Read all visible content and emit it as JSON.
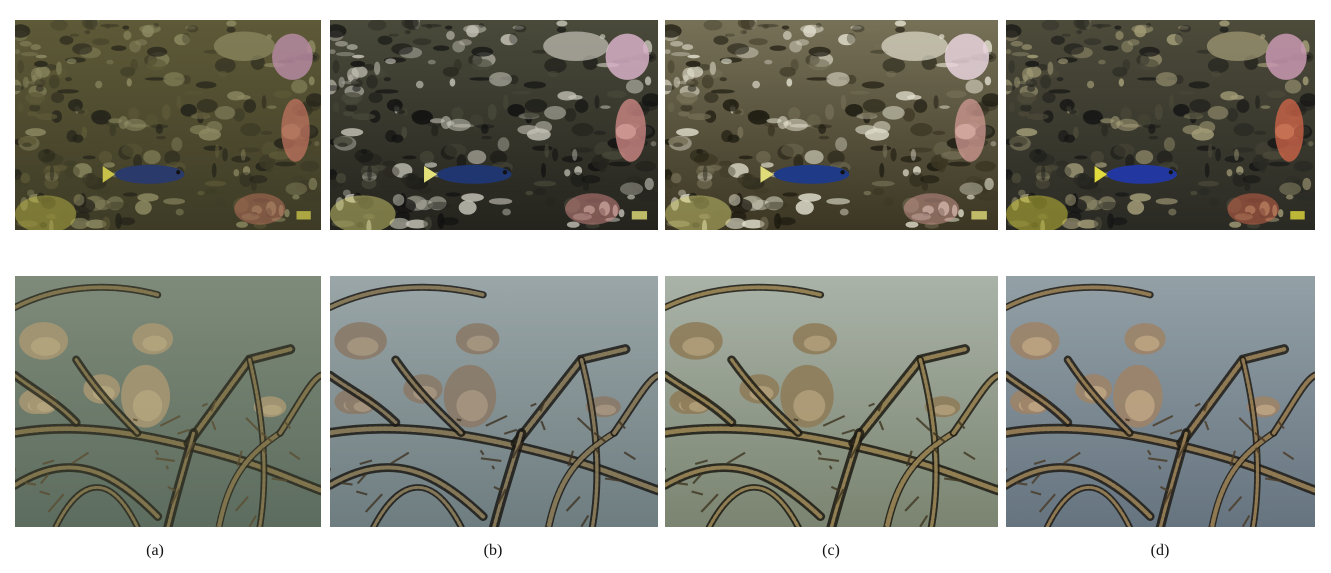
{
  "figure": {
    "columns": [
      {
        "label": "(a)",
        "reef_palette": {
          "bg1": "#5e5a38",
          "bg2": "#3d3b26",
          "rock": "#8d8a63",
          "coral": "#c0735f",
          "coral2": "#b58aa0",
          "shadow": "#232219",
          "fish": "#2a3a6a",
          "fishTail": "#c8c24a"
        },
        "branch_palette": {
          "water1": "#7f8b7a",
          "water2": "#5c6c5e",
          "branch": "#5b4e32",
          "branchLight": "#9a8a5a",
          "fish": "#a59672",
          "fishBelly": "#bdae84",
          "dark": "#2b2a1f"
        }
      },
      {
        "label": "(b)",
        "reef_palette": {
          "bg1": "#4a4a3b",
          "bg2": "#24231d",
          "rock": "#c4c2b6",
          "coral": "#d78c8a",
          "coral2": "#d7b2c7",
          "shadow": "#111111",
          "fish": "#203670",
          "fishTail": "#e4e07a"
        },
        "branch_palette": {
          "water1": "#9aa6a8",
          "water2": "#6e7d80",
          "branch": "#3f3424",
          "branchLight": "#a3916a",
          "fish": "#8a7a68",
          "fishBelly": "#b4a48a",
          "dark": "#1b1915"
        }
      },
      {
        "label": "(c)",
        "reef_palette": {
          "bg1": "#777158",
          "bg2": "#3b3623",
          "rock": "#e0ddcc",
          "coral": "#d29a93",
          "coral2": "#e8d3dd",
          "shadow": "#1c1a10",
          "fish": "#1f3a86",
          "fishTail": "#e1dc7a"
        },
        "branch_palette": {
          "water1": "#aab3a8",
          "water2": "#7a8470",
          "branch": "#3e3621",
          "branchLight": "#b39b63",
          "fish": "#8e7c5a",
          "fishBelly": "#c0ad86",
          "dark": "#1c1a12"
        }
      },
      {
        "label": "(d)",
        "reef_palette": {
          "bg1": "#4d4b3a",
          "bg2": "#2a2a24",
          "rock": "#a49d78",
          "coral": "#d6674b",
          "coral2": "#c999b1",
          "shadow": "#151515",
          "fish": "#2238a0",
          "fishTail": "#e2db3d"
        },
        "branch_palette": {
          "water1": "#93a0a6",
          "water2": "#667480",
          "branch": "#4a3a25",
          "branchLight": "#b29461",
          "fish": "#9c8368",
          "fishBelly": "#cfb48e",
          "dark": "#1f1b15"
        }
      }
    ]
  }
}
